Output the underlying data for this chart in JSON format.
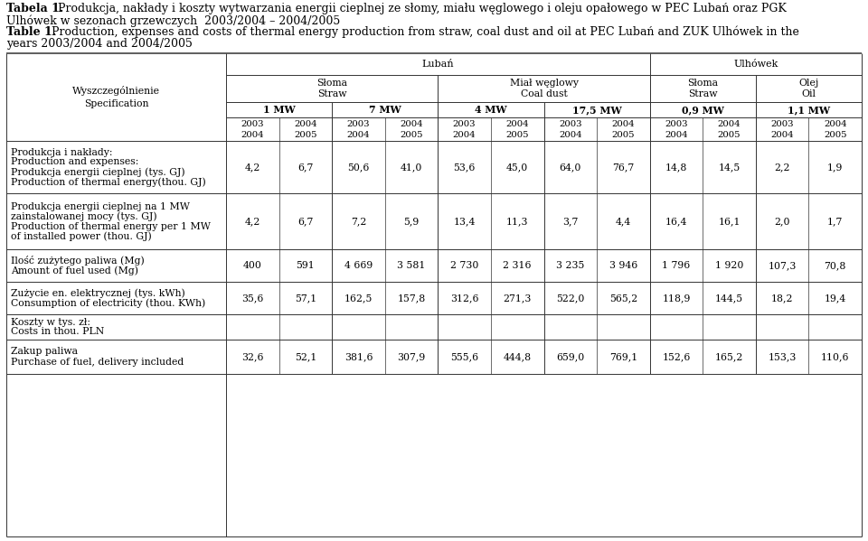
{
  "title1_bold": "Tabela 1.",
  "title1_rest": " Produkcja, nakłady i koszty wytwarzania energii cieplnej ze słomy, miału węglowego i oleju opałowego w PEC Lubań oraz PGK",
  "title1_line2": "Ulhówek w sezonach grzewczych  2003/2004 – 2004/2005",
  "title2_bold": "Table 1.",
  "title2_rest": " Production, expenses and costs of thermal energy production from straw, coal dust and oil at PEC Lubań and ZUK Ulhówek in the",
  "title2_line2": "years 2003/2004 and 2004/2005",
  "header_luban": "Lubań",
  "header_ulhowek": "Ulhówek",
  "subheader_sloma1": "Słoma\nStraw",
  "subheader_mial": "Miał węglowy\nCoal dust",
  "subheader_sloma2": "Słoma\nStraw",
  "subheader_olej": "Olej\nOil",
  "mw_labels": [
    "1 MW",
    "7 MW",
    "4 MW",
    "17,5 MW",
    "0,9 MW",
    "1,1 MW"
  ],
  "rows": [
    {
      "label_lines": [
        "Produkcja i nakłady:",
        "Production and expenses:",
        "Produkcja energii cieplnej (tys. GJ)",
        "Production of thermal energy(thou. GJ)"
      ],
      "values": [
        "4,2",
        "6,7",
        "50,6",
        "41,0",
        "53,6",
        "45,0",
        "64,0",
        "76,7",
        "14,8",
        "14,5",
        "2,2",
        "1,9"
      ]
    },
    {
      "label_lines": [
        "Produkcja energii cieplnej na 1 MW",
        "zainstalowanej mocy (tys. GJ)",
        "Production of thermal energy per 1 MW",
        "of installed power (thou. GJ)"
      ],
      "values": [
        "4,2",
        "6,7",
        "7,2",
        "5,9",
        "13,4",
        "11,3",
        "3,7",
        "4,4",
        "16,4",
        "16,1",
        "2,0",
        "1,7"
      ]
    },
    {
      "label_lines": [
        "Ilość zużytego paliwa (Mg)",
        "Amount of fuel used (Mg)"
      ],
      "values": [
        "400",
        "591",
        "4 669",
        "3 581",
        "2 730",
        "2 316",
        "3 235",
        "3 946",
        "1 796",
        "1 920",
        "107,3",
        "70,8"
      ]
    },
    {
      "label_lines": [
        "Zużycie en. elektrycznej (tys. kWh)",
        "Consumption of electricity (thou. KWh)"
      ],
      "values": [
        "35,6",
        "57,1",
        "162,5",
        "157,8",
        "312,6",
        "271,3",
        "522,0",
        "565,2",
        "118,9",
        "144,5",
        "18,2",
        "19,4"
      ]
    },
    {
      "label_lines": [
        "Koszty w tys. zł:",
        "Costs in thou. PLN"
      ],
      "values": [
        "",
        "",
        "",
        "",
        "",
        "",
        "",
        "",
        "",
        "",
        "",
        ""
      ]
    },
    {
      "label_lines": [
        "Zakup paliwa",
        "Purchase of fuel, delivery included"
      ],
      "values": [
        "32,6",
        "52,1",
        "381,6",
        "307,9",
        "555,6",
        "444,8",
        "659,0",
        "769,1",
        "152,6",
        "165,2",
        "153,3",
        "110,6"
      ]
    }
  ],
  "bg_color": "#ffffff",
  "text_color": "#000000",
  "line_color": "#333333",
  "font_size": 8.0,
  "title_font_size": 9.0,
  "label_font_size": 7.8
}
